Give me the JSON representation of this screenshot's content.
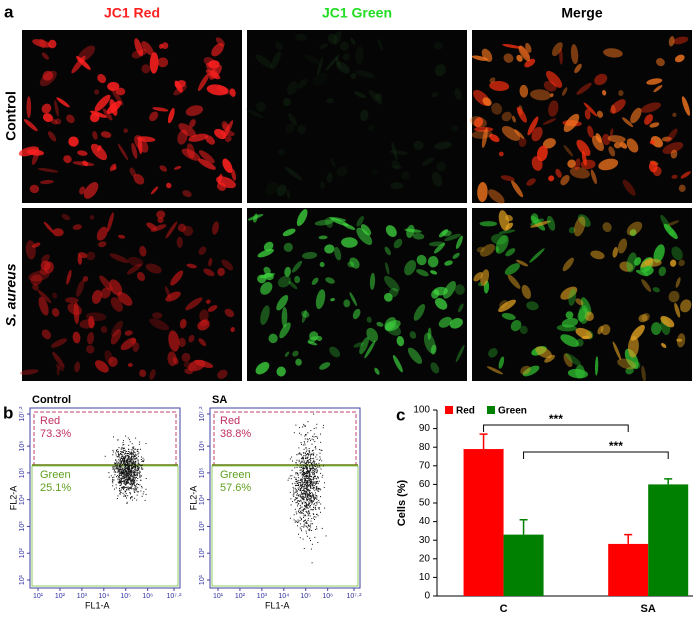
{
  "panel_a": {
    "label": "a",
    "columns": [
      "JC1 Red",
      "JC1 Green",
      "Merge"
    ],
    "rows": [
      "Control",
      "S. aureus"
    ]
  },
  "panel_b": {
    "label": "b",
    "xlabel": "FL1-A",
    "ylabel": "FL2-A",
    "ticks": [
      {
        "value": 1,
        "label": "10¹"
      },
      {
        "value": 2,
        "label": "10²"
      },
      {
        "value": 3,
        "label": "10³"
      },
      {
        "value": 4,
        "label": "10⁴"
      },
      {
        "value": 5,
        "label": "10⁵"
      },
      {
        "value": 6,
        "label": "10⁶"
      },
      {
        "value": 7.2,
        "label": "10⁷·²"
      }
    ],
    "plots": [
      {
        "title": "Control",
        "gates": [
          {
            "name": "Red",
            "percent": "73.3%"
          },
          {
            "name": "Green",
            "percent": "25.1%"
          }
        ]
      },
      {
        "title": "SA",
        "gates": [
          {
            "name": "Red",
            "percent": "38.8%"
          },
          {
            "name": "Green",
            "percent": "57.6%"
          }
        ]
      }
    ]
  },
  "chart_data": {
    "type": "bar",
    "panel_label": "c",
    "ylabel": "Cells (%)",
    "categories": [
      "C",
      "SA"
    ],
    "series": [
      {
        "name": "Red",
        "color": "#ff0000",
        "values": [
          79,
          28
        ],
        "errors": [
          8,
          5
        ]
      },
      {
        "name": "Green",
        "color": "#008000",
        "values": [
          33,
          60
        ],
        "errors": [
          8,
          3
        ]
      }
    ],
    "ylim": [
      0,
      100
    ],
    "yticks": [
      0,
      10,
      20,
      30,
      40,
      50,
      60,
      70,
      80,
      90,
      100
    ],
    "annotations": [
      "***",
      "***"
    ]
  }
}
